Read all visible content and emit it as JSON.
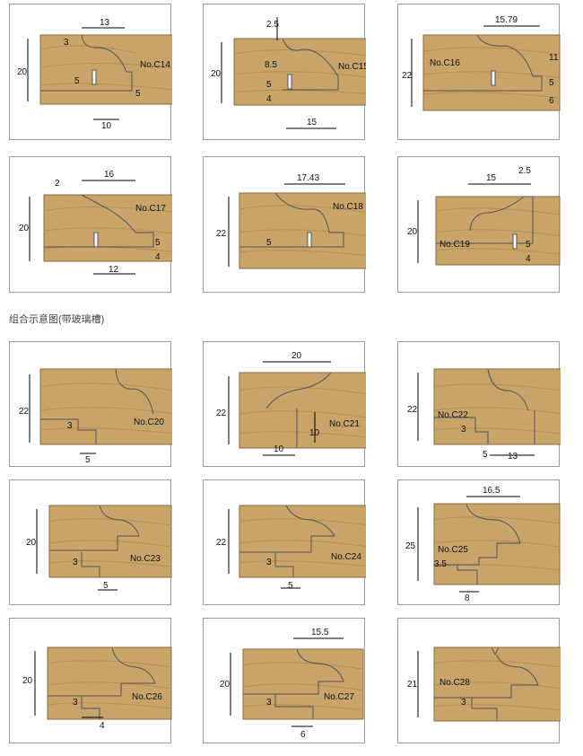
{
  "section_title": "组合示意图(带玻璃槽)",
  "wood": {
    "base": "#c9a46a",
    "grain": "#b48d55",
    "edge": "#8a6a3c"
  },
  "profiles": [
    {
      "code": "No.C14",
      "dims": [
        "13",
        "3",
        "20",
        "5",
        "5",
        "10"
      ]
    },
    {
      "code": "No.C15",
      "dims": [
        "2.5",
        "8.5",
        "5",
        "4",
        "20",
        "15"
      ]
    },
    {
      "code": "No.C16",
      "dims": [
        "15.79",
        "22",
        "11",
        "5",
        "6"
      ]
    },
    {
      "code": "No.C17",
      "dims": [
        "2",
        "16",
        "20",
        "5",
        "4",
        "12"
      ]
    },
    {
      "code": "No.C18",
      "dims": [
        "17.43",
        "22",
        "5"
      ]
    },
    {
      "code": "No.C19",
      "dims": [
        "15",
        "2.5",
        "20",
        "5",
        "4"
      ]
    },
    {
      "code": "No.C20",
      "dims": [
        "22",
        "3",
        "5"
      ]
    },
    {
      "code": "No.C21",
      "dims": [
        "20",
        "22",
        "10",
        "10"
      ]
    },
    {
      "code": "No.C22",
      "dims": [
        "22",
        "3",
        "5",
        "13"
      ]
    },
    {
      "code": "No.C23",
      "dims": [
        "20",
        "3",
        "5"
      ]
    },
    {
      "code": "No.C24",
      "dims": [
        "22",
        "3",
        "5"
      ]
    },
    {
      "code": "No.C25",
      "dims": [
        "16.5",
        "25",
        "3.5",
        "8"
      ]
    },
    {
      "code": "No.C26",
      "dims": [
        "20",
        "3",
        "4"
      ]
    },
    {
      "code": "No.C27",
      "dims": [
        "15.5",
        "20",
        "3",
        "6"
      ]
    },
    {
      "code": "No.C28",
      "dims": [
        "21",
        "3"
      ]
    }
  ]
}
